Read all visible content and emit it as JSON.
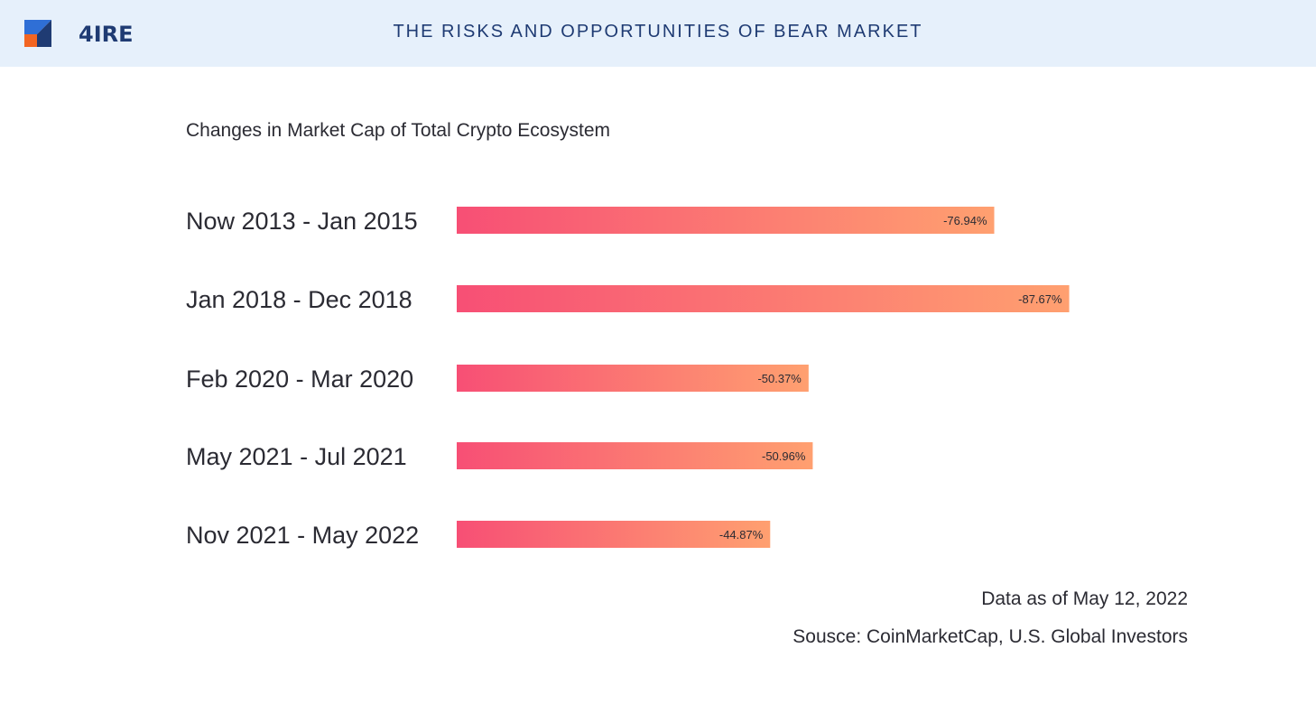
{
  "header": {
    "logo_text": "4IRE",
    "title": "THE RISKS AND OPPORTUNITIES OF BEAR MARKET"
  },
  "colors": {
    "header_bg": "#e6f0fb",
    "bar_start": "#f74f75",
    "bar_end": "#ffa070",
    "logo_blue": "#2f6fd6",
    "logo_navy": "#1f3b73",
    "logo_orange": "#f26522"
  },
  "chart_data": {
    "type": "bar",
    "orientation": "horizontal",
    "title": "Changes in Market Cap of Total Crypto Ecosystem",
    "categories": [
      "Now 2013 - Jan 2015",
      "Jan 2018 - Dec 2018",
      "Feb 2020 - Mar 2020",
      "May 2021 - Jul 2021",
      "Nov 2021 - May 2022"
    ],
    "values": [
      -76.94,
      -87.67,
      -50.37,
      -50.96,
      -44.87
    ],
    "value_labels": [
      "-76.94%",
      "-87.67%",
      "-50.37%",
      "-50.96%",
      "-44.87%"
    ],
    "grid": false,
    "legend": "none"
  },
  "notes": {
    "date": "Data as of May 12, 2022",
    "source": "Sousce: CoinMarketCap, U.S. Global Investors"
  }
}
